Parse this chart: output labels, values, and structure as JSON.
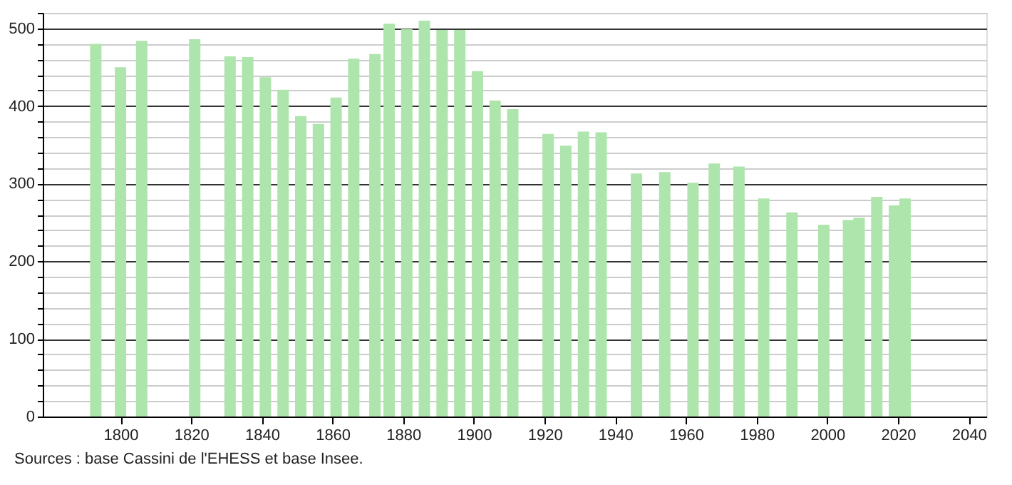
{
  "chart_data": {
    "type": "bar",
    "x": [
      1793,
      1800,
      1806,
      1821,
      1831,
      1836,
      1841,
      1846,
      1851,
      1856,
      1861,
      1866,
      1872,
      1876,
      1881,
      1886,
      1891,
      1896,
      1901,
      1906,
      1911,
      1921,
      1926,
      1931,
      1936,
      1946,
      1954,
      1962,
      1968,
      1975,
      1982,
      1990,
      1999,
      2006,
      2009,
      2014,
      2019,
      2022
    ],
    "series": [
      {
        "color": "#aee5ac",
        "values": [
          480,
          450,
          484,
          486,
          464,
          463,
          437,
          421,
          387,
          377,
          411,
          461,
          467,
          506,
          499,
          510,
          498,
          498,
          445,
          407,
          396,
          364,
          349,
          367,
          366,
          313,
          315,
          301,
          326,
          322,
          281,
          263,
          247,
          253,
          256,
          283,
          272,
          281
        ]
      }
    ],
    "xlim": [
      1778,
      2045
    ],
    "xticks": [
      1800,
      1820,
      1840,
      1860,
      1880,
      1900,
      1920,
      1940,
      1960,
      1980,
      2000,
      2020,
      2040
    ],
    "ylim": [
      0,
      520
    ],
    "yticks": [
      0,
      {
        "value": 20,
        "label": null
      },
      {
        "value": 40,
        "label": null
      },
      {
        "value": 60,
        "label": null
      },
      {
        "value": 80,
        "label": null
      },
      100,
      {
        "value": 120,
        "label": null
      },
      {
        "value": 140,
        "label": null
      },
      {
        "value": 160,
        "label": null
      },
      {
        "value": 180,
        "label": null
      },
      200,
      {
        "value": 220,
        "label": null
      },
      {
        "value": 240,
        "label": null
      },
      {
        "value": 260,
        "label": null
      },
      {
        "value": 280,
        "label": null
      },
      300,
      {
        "value": 320,
        "label": null
      },
      {
        "value": 340,
        "label": null
      },
      {
        "value": 360,
        "label": null
      },
      {
        "value": 380,
        "label": null
      },
      400,
      {
        "value": 420,
        "label": null
      },
      {
        "value": 440,
        "label": null
      },
      {
        "value": 460,
        "label": null
      },
      {
        "value": 480,
        "label": null
      },
      500,
      {
        "value": 520,
        "label": null
      }
    ],
    "grid": "y",
    "annotations": [
      "Sources : base Cassini de l'EHESS et base Insee."
    ]
  }
}
